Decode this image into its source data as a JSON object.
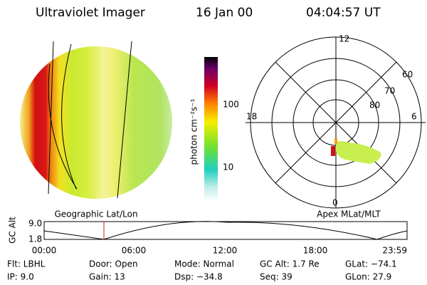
{
  "header": {
    "title": "Ultraviolet Imager",
    "date": "16 Jan 00",
    "time": "04:04:57 UT"
  },
  "image_panel": {
    "caption": "Geographic Lat/Lon"
  },
  "colorbar": {
    "label": "photon cm⁻²s⁻¹",
    "ticks": [
      "100",
      "10"
    ]
  },
  "polar_panel": {
    "caption": "Apex MLat/MLT",
    "mlt_labels": [
      "12",
      "18",
      "6",
      "0"
    ],
    "lat_labels": [
      "60",
      "70",
      "80"
    ]
  },
  "timeline": {
    "ylabel": "GC Alt",
    "yticks": [
      "9.0",
      "1.8"
    ],
    "xticks": [
      "00:00",
      "06:00",
      "12:00",
      "18:00",
      "23:59"
    ]
  },
  "info": {
    "rows": [
      [
        "Flt: LBHL",
        "Door: Open",
        "Mode: Normal",
        "GC Alt: 1.7 Re",
        "GLat: −74.1"
      ],
      [
        "IP: 9.0",
        "Gain: 13",
        "Dsp: −34.8",
        "Seq: 39",
        "GLon: 27.9"
      ]
    ]
  }
}
